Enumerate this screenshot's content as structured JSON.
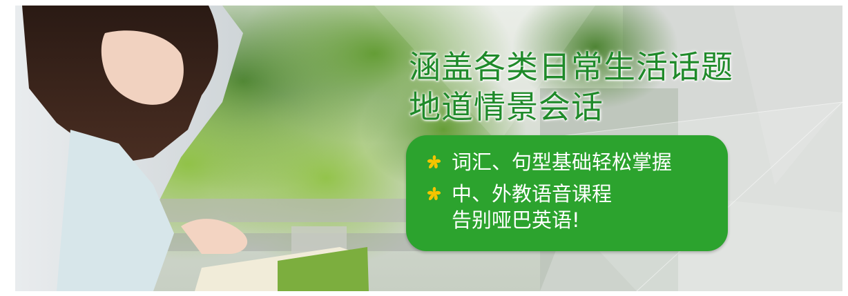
{
  "banner": {
    "headline": {
      "line1": "涵盖各类日常生活话题",
      "line2": "地道情景会话"
    },
    "features": [
      {
        "icon": "star-bullet-icon",
        "lines": [
          "词汇、句型基础轻松掌握"
        ]
      },
      {
        "icon": "star-bullet-icon",
        "lines": [
          "中、外教语音课程",
          "告别哑巴英语!"
        ]
      }
    ],
    "colors": {
      "headline_green": "#1f8a2a",
      "box_green": "#2ca32e",
      "bullet_yellow": "#f5c400",
      "text_white": "#ffffff"
    }
  }
}
